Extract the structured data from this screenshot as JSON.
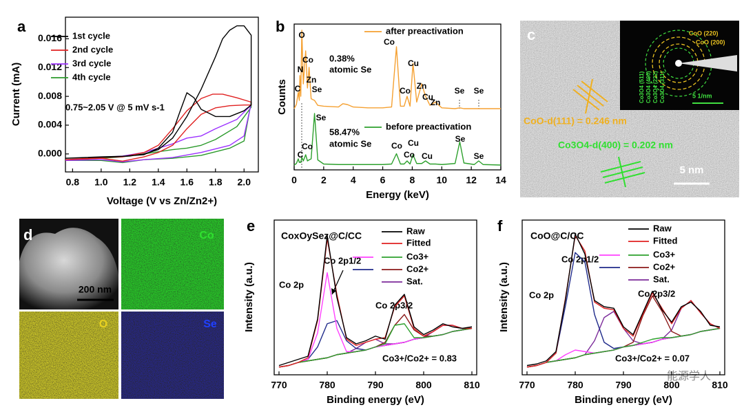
{
  "chart_data": [
    {
      "type": "line",
      "panel": "a",
      "xlabel": "Voltage (V vs Zn/Zn2+)",
      "ylabel": "Current (mA)",
      "annotations": [
        "0.75~2.05 V @ 5 mV s-1"
      ],
      "xlim": [
        0.75,
        2.1
      ],
      "xticks": [
        0.8,
        {
          "value": 1,
          "label": "1.0"
        },
        1.2,
        1.4,
        1.6,
        1.8,
        {
          "value": 2,
          "label": "2.0"
        }
      ],
      "ylim": [
        -0.0025,
        0.019
      ],
      "yticks": [
        {
          "value": 0,
          "label": "0.000"
        },
        0.004,
        0.008,
        0.012,
        0.016
      ],
      "series": [
        {
          "name": "1st cycle",
          "color": "#000000",
          "x": [
            0.75,
            0.9,
            1.1,
            1.3,
            1.4,
            1.5,
            1.55,
            1.6,
            1.65,
            1.7,
            1.8,
            1.9,
            2.0,
            2.05,
            2.05,
            2.0,
            1.95,
            1.9,
            1.85,
            1.8,
            1.7,
            1.6,
            1.5,
            1.4,
            1.3,
            1.2,
            1.0,
            0.75
          ],
          "values": [
            -0.0006,
            -0.0005,
            -0.0004,
            -0.0001,
            0.0008,
            0.003,
            0.0058,
            0.0085,
            0.0078,
            0.0062,
            0.0052,
            0.0052,
            0.006,
            0.0068,
            0.0165,
            0.0178,
            0.0178,
            0.0172,
            0.016,
            0.0135,
            0.009,
            0.0052,
            0.0022,
            0.0006,
            0,
            -0.0003,
            -0.0004,
            -0.0006
          ]
        },
        {
          "name": "2nd cycle",
          "color": "#e02020",
          "x": [
            0.75,
            1.0,
            1.15,
            1.3,
            1.4,
            1.5,
            1.6,
            1.7,
            1.8,
            1.9,
            2.0,
            2.05,
            2.05,
            1.95,
            1.85,
            1.78,
            1.7,
            1.6,
            1.5,
            1.4,
            1.3,
            1.15,
            1.0,
            0.75
          ],
          "values": [
            -0.0008,
            -0.0006,
            -0.001,
            -0.0004,
            0.0002,
            0.0012,
            0.0035,
            0.0055,
            0.0064,
            0.0067,
            0.0068,
            0.0068,
            0.0072,
            0.0078,
            0.0083,
            0.0083,
            0.0077,
            0.006,
            0.0035,
            0.0012,
            0.0002,
            -0.0004,
            -0.0005,
            -0.0008
          ]
        },
        {
          "name": "3rd cycle",
          "color": "#9b30ff",
          "x": [
            0.75,
            1.0,
            1.15,
            1.3,
            1.5,
            1.7,
            1.9,
            2.0,
            2.05,
            2.05,
            1.95,
            1.8,
            1.7,
            1.6,
            1.5,
            1.3,
            1.15,
            1.0,
            0.75
          ],
          "values": [
            -0.0009,
            -0.0008,
            -0.0011,
            -0.0008,
            -0.0005,
            0.0002,
            0.0012,
            0.0025,
            0.007,
            0.0068,
            0.0048,
            0.0035,
            0.0025,
            0.0022,
            0.0014,
            0.0002,
            -0.0003,
            -0.0005,
            -0.0009
          ]
        },
        {
          "name": "4th cycle",
          "color": "#2a9a2a",
          "x": [
            0.75,
            1.0,
            1.15,
            1.3,
            1.5,
            1.7,
            1.9,
            2.0,
            2.05,
            2.05,
            1.95,
            1.8,
            1.7,
            1.6,
            1.5,
            1.3,
            1.15,
            1.0,
            0.75
          ],
          "values": [
            -0.0009,
            -0.0009,
            -0.0012,
            -0.0008,
            -0.0006,
            -0.0002,
            0.0008,
            0.0018,
            0.0072,
            0.0065,
            0.0038,
            0.002,
            0.0012,
            0.0008,
            0.0006,
            0,
            -0.0004,
            -0.0006,
            -0.0009
          ]
        }
      ]
    },
    {
      "type": "line",
      "panel": "b",
      "xlabel": "Energy (keV)",
      "ylabel": "Counts",
      "annotations": [
        "0.38%",
        "atomic Se",
        "58.47%",
        "atomic Se"
      ],
      "xlim": [
        0,
        14
      ],
      "xticks": [
        0,
        2,
        4,
        6,
        8,
        10,
        12,
        14
      ],
      "ylim": [
        0,
        100
      ],
      "x": [
        0,
        0.15,
        0.28,
        0.35,
        0.39,
        0.45,
        0.52,
        0.62,
        0.78,
        0.9,
        1.01,
        1.15,
        1.38,
        1.6,
        2,
        3,
        3.3,
        3.6,
        4,
        5,
        6,
        6.6,
        6.93,
        7.2,
        7.45,
        7.65,
        7.85,
        8.05,
        8.3,
        8.64,
        8.9,
        9.2,
        9.57,
        10,
        10.9,
        11.22,
        11.5,
        12.2,
        12.5,
        12.8,
        14
      ],
      "series": [
        {
          "name": "after preactivation",
          "color": "#f5a030",
          "values": [
            0,
            5,
            20,
            10,
            40,
            15,
            95,
            30,
            70,
            25,
            50,
            12,
            10,
            4,
            3,
            2,
            6,
            5,
            2,
            1,
            1,
            2,
            75,
            3,
            3,
            15,
            3,
            55,
            8,
            30,
            15,
            4,
            8,
            1,
            0,
            1,
            0,
            0,
            0,
            0,
            0
          ],
          "peak_labels": [
            "O",
            "Co",
            "N",
            "Zn",
            "C",
            "Se",
            "Co",
            "Cu",
            "Co",
            "Zn",
            "Cu",
            "Zn",
            "Se",
            "Se"
          ]
        },
        {
          "name": "before preactivation",
          "color": "#2ca02c",
          "values": [
            0,
            3,
            12,
            5,
            6,
            5,
            15,
            8,
            20,
            8,
            10,
            12,
            100,
            10,
            2,
            1,
            1,
            1,
            1,
            1,
            1,
            2,
            22,
            2,
            2,
            8,
            2,
            20,
            3,
            3,
            8,
            2,
            2,
            1,
            3,
            45,
            4,
            1,
            8,
            1,
            0
          ],
          "peak_labels": [
            "Se",
            "C",
            "Co",
            "Co",
            "Cu",
            "Co",
            "Cu",
            "Se",
            "Se"
          ]
        }
      ]
    },
    {
      "type": "line",
      "panel": "e",
      "title": "CoxOySez@C/CC",
      "xlabel": "Binding energy (eV)",
      "ylabel": "Intensity (a.u.)",
      "annotations": [
        "Co 2p",
        "Co 2p1/2",
        "Co 2p3/2",
        "Co3+/Co2+ = 0.83"
      ],
      "xlim": [
        769,
        811
      ],
      "xticks": [
        770,
        780,
        790,
        800,
        810
      ],
      "ylim": [
        0,
        100
      ],
      "x": [
        770,
        772,
        774,
        776,
        778,
        780,
        782,
        784,
        786,
        788,
        790,
        792,
        794,
        796,
        798,
        800,
        802,
        804,
        806,
        808,
        810
      ],
      "series": [
        {
          "name": "Raw",
          "color": "#000000",
          "values": [
            6,
            8,
            10,
            12,
            36,
            90,
            50,
            24,
            20,
            22,
            25,
            23,
            45,
            52,
            31,
            26,
            29,
            33,
            31,
            30,
            31
          ]
        },
        {
          "name": "Fitted",
          "color": "#e02020",
          "values": [
            5,
            6,
            8,
            11,
            35,
            88,
            52,
            23,
            19,
            21,
            23,
            24,
            44,
            51,
            30,
            25,
            28,
            32,
            32,
            30,
            30
          ]
        },
        {
          "name": "Co3+",
          "parts": [
            {
              "color": "#ff40ff",
              "values": [
                5,
                6,
                8,
                10,
                27,
                66,
                30,
                15,
                15,
                16,
                18,
                19,
                20,
                21,
                23,
                24,
                25,
                26,
                28,
                29,
                30
              ]
            },
            {
              "color": "#2ca02c",
              "values": [
                5,
                6,
                8,
                9,
                10,
                11,
                13,
                14,
                15,
                16,
                18,
                20,
                32,
                33,
                24,
                24,
                25,
                26,
                28,
                29,
                30
              ]
            }
          ]
        },
        {
          "name": "Co2+",
          "parts": [
            {
              "color": "#1f2a8a",
              "values": [
                5,
                6,
                8,
                10,
                18,
                33,
                35,
                22,
                17,
                16,
                18,
                19,
                20,
                21,
                23,
                24,
                25,
                26,
                28,
                29,
                30
              ]
            },
            {
              "color": "#8b1a1a",
              "values": [
                5,
                6,
                8,
                9,
                10,
                11,
                13,
                14,
                15,
                16,
                18,
                21,
                32,
                39,
                29,
                25,
                25,
                26,
                28,
                29,
                30
              ]
            }
          ]
        },
        {
          "name": "Sat.",
          "color": "#7b2a9a",
          "values": [
            5,
            6,
            8,
            9,
            10,
            11,
            13,
            14,
            17,
            21,
            23,
            20,
            20,
            21,
            23,
            24,
            28,
            32,
            32,
            30,
            30
          ]
        },
        {
          "color": "#8b3a3a",
          "values": [
            5,
            6,
            8,
            9,
            10,
            11,
            13,
            14,
            15,
            16,
            18,
            19,
            20,
            21,
            23,
            24,
            25,
            26,
            28,
            29,
            30
          ]
        }
      ]
    },
    {
      "type": "line",
      "panel": "f",
      "title": "CoO@C/CC",
      "xlabel": "Binding energy (eV)",
      "ylabel": "Intensity (a.u.)",
      "annotations": [
        "Co 2p",
        "Co 2p1/2",
        "Co 2p3/2",
        "Co3+/Co2+ = 0.07"
      ],
      "xlim": [
        769,
        811
      ],
      "xticks": [
        770,
        780,
        790,
        800,
        810
      ],
      "ylim": [
        0,
        100
      ],
      "x": [
        770,
        772,
        774,
        776,
        778,
        780,
        782,
        784,
        786,
        788,
        790,
        792,
        794,
        796,
        798,
        800,
        802,
        804,
        806,
        808,
        810
      ],
      "series": [
        {
          "name": "Raw",
          "color": "#000000",
          "values": [
            6,
            7,
            9,
            15,
            49,
            91,
            78,
            48,
            44,
            43,
            31,
            26,
            40,
            54,
            42,
            34,
            44,
            47,
            41,
            32,
            31
          ]
        },
        {
          "name": "Fitted",
          "color": "#e02020",
          "values": [
            5,
            6,
            8,
            14,
            50,
            90,
            80,
            47,
            43,
            42,
            30,
            25,
            39,
            53,
            43,
            33,
            43,
            48,
            40,
            33,
            30
          ]
        },
        {
          "name": "Co3+",
          "parts": [
            {
              "color": "#ff40ff",
              "values": [
                5,
                6,
                8,
                9,
                13,
                16,
                15,
                14,
                15,
                16,
                18,
                19,
                20,
                21,
                23,
                24,
                25,
                26,
                28,
                29,
                30
              ]
            },
            {
              "color": "#2ca02c",
              "values": [
                5,
                6,
                8,
                9,
                10,
                11,
                13,
                14,
                15,
                16,
                18,
                19,
                21,
                23,
                24,
                24,
                25,
                26,
                28,
                29,
                30
              ]
            }
          ]
        },
        {
          "name": "Co2+",
          "parts": [
            {
              "color": "#1f2a8a",
              "values": [
                5,
                6,
                8,
                14,
                45,
                79,
                73,
                39,
                21,
                17,
                18,
                19,
                20,
                21,
                23,
                24,
                25,
                26,
                28,
                29,
                30
              ]
            },
            {
              "color": "#8b1a1a",
              "values": [
                5,
                6,
                8,
                9,
                10,
                11,
                13,
                14,
                15,
                16,
                18,
                21,
                38,
                51,
                41,
                28,
                25,
                26,
                28,
                29,
                30
              ]
            }
          ]
        },
        {
          "name": "Sat.",
          "color": "#7b2a9a",
          "values": [
            5,
            6,
            8,
            9,
            10,
            11,
            13,
            22,
            37,
            41,
            30,
            22,
            20,
            21,
            23,
            29,
            43,
            48,
            40,
            33,
            30
          ]
        },
        {
          "color": "#8b3a3a",
          "values": [
            5,
            6,
            8,
            9,
            10,
            11,
            13,
            14,
            15,
            16,
            18,
            19,
            20,
            21,
            23,
            24,
            25,
            26,
            28,
            29,
            30
          ]
        }
      ]
    }
  ],
  "images": {
    "c": {
      "label": "c",
      "rings": [
        "CoO (220)",
        "CoO (200)"
      ],
      "spots": [
        "Co3O4 (511)",
        "Co3O4 (400)",
        "Co3O4 (222)",
        "Co3O4 (311)"
      ],
      "inset_scale": "5 1/nm",
      "d_coo": "CoO-d(111) = 0.246 nm",
      "d_co3o4": "Co3O4-d(400) = 0.202 nm",
      "scale": "5 nm"
    },
    "d": {
      "label": "d",
      "scale": "200 nm",
      "maps": [
        "Co",
        "O",
        "Se"
      ]
    }
  },
  "watermark": "能源学人"
}
